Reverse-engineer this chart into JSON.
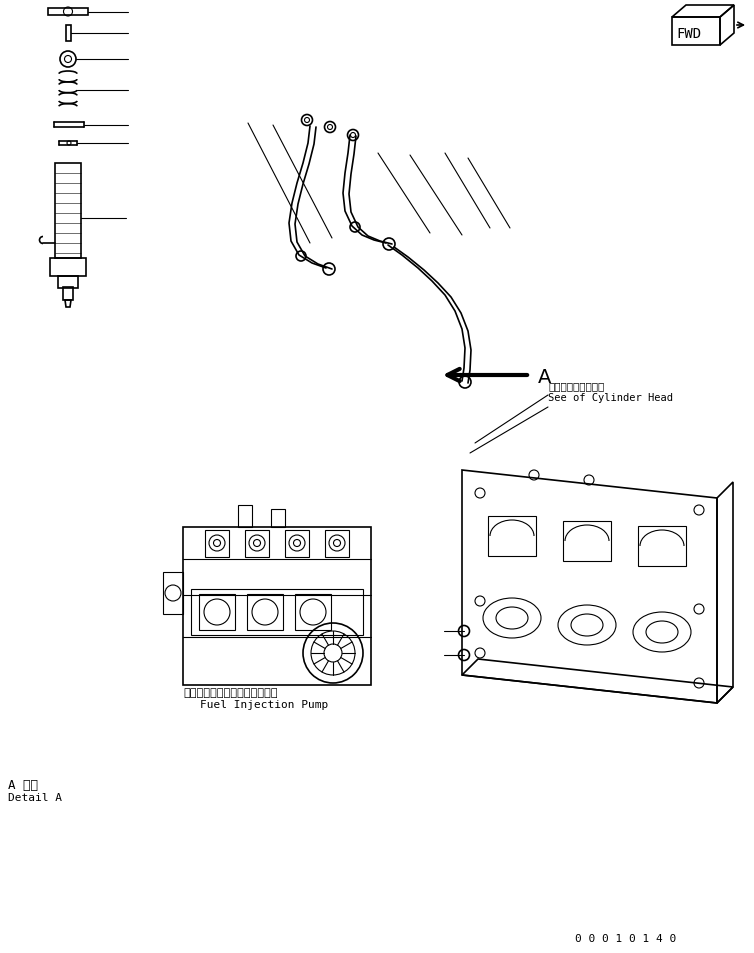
{
  "bg_color": "#ffffff",
  "line_color": "#000000",
  "fig_width": 7.54,
  "fig_height": 9.54,
  "dpi": 100,
  "label_A_detail_jp": "A 詳細",
  "label_A_detail_en": "Detail A",
  "label_pump_jp": "フェルインジェクションポンプ",
  "label_pump_en": "Fuel Injection Pump",
  "label_cylinder_jp": "シリンダヘッド参照",
  "label_cylinder_en": "See of Cylinder Head",
  "label_A": "A",
  "label_FWD": "FWD",
  "part_number": "0 0 0 1 0 1 4 0"
}
